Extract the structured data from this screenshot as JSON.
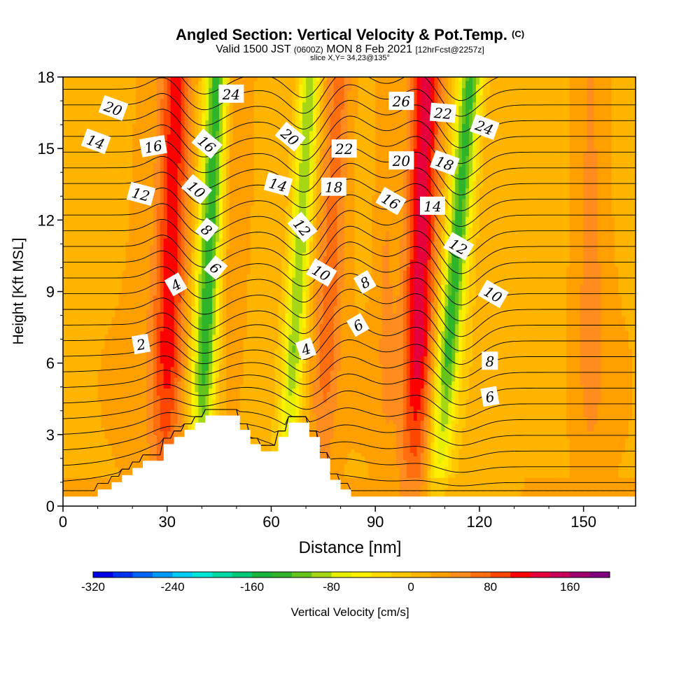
{
  "title": {
    "main": "Angled Section: Vertical Velocity & Pot.Temp.",
    "copyright": "(C)",
    "valid_prefix": "Valid 1500 JST",
    "utc": "(0600Z)",
    "date": "MON 8 Feb 2021",
    "forecast": "[12hrFcst@2257z]",
    "slice": "slice X,Y= 34,23@135°"
  },
  "colors": {
    "palette": [
      "#0000e6",
      "#0033f0",
      "#0066f5",
      "#0099f5",
      "#00ccf5",
      "#00e6d6",
      "#00d9a3",
      "#00c878",
      "#19b43c",
      "#2fb42a",
      "#66c319",
      "#a6d614",
      "#e6f000",
      "#fff000",
      "#ffdc00",
      "#ffc800",
      "#ffb400",
      "#ffa000",
      "#ff8c1e",
      "#ff6e0f",
      "#ff4600",
      "#ff0000",
      "#e6003c",
      "#c8005a",
      "#a0006e",
      "#800080",
      "#6e0096"
    ]
  },
  "chart_data": {
    "type": "heatmap",
    "xlabel": "Distance [nm]",
    "ylabel": "Height [Kft MSL]",
    "xlim": [
      0,
      165
    ],
    "ylim": [
      0,
      18
    ],
    "xticks": [
      0,
      30,
      60,
      90,
      120,
      150
    ],
    "yticks": [
      0,
      3,
      6,
      9,
      12,
      15,
      18
    ],
    "colorbar": {
      "label": "Vertical Velocity [cm/s]",
      "min": -320,
      "max": 200,
      "step": 20,
      "ticks": [
        -320,
        -240,
        -160,
        -80,
        0,
        80,
        160
      ]
    },
    "vertical_velocity_bands": [
      {
        "x": 31,
        "tilt": 0.2,
        "amp": 100,
        "width": 4.5,
        "label": "updraft"
      },
      {
        "x": 42,
        "tilt": 0.3,
        "amp": -150,
        "width": 3.5,
        "label": "downdraft"
      },
      {
        "x": 49,
        "tilt": 0.1,
        "amp": 30,
        "width": 5,
        "label": "updraft"
      },
      {
        "x": 68,
        "tilt": 0.4,
        "amp": -110,
        "width": 3,
        "label": "downdraft"
      },
      {
        "x": 77,
        "tilt": 0.3,
        "amp": 55,
        "width": 4,
        "label": "updraft"
      },
      {
        "x": 103,
        "tilt": 0.2,
        "amp": 120,
        "width": 4.5,
        "label": "updraft"
      },
      {
        "x": 113,
        "tilt": 0.55,
        "amp": -140,
        "width": 3.5,
        "label": "downdraft"
      },
      {
        "x": 93,
        "tilt": 0,
        "amp": 25,
        "width": 3,
        "label": "updraft"
      },
      {
        "x": 22,
        "tilt": 0.1,
        "amp": 10,
        "width": 4,
        "label": "updraft"
      },
      {
        "x": 152,
        "tilt": 0,
        "amp": 30,
        "width": 5,
        "label": "updraft"
      }
    ],
    "contour_labels": [
      {
        "text": "20",
        "x": 14.5,
        "y": 16.7,
        "angle": 20
      },
      {
        "text": "14",
        "x": 9.5,
        "y": 15.3,
        "angle": 20
      },
      {
        "text": "16",
        "x": 26,
        "y": 15.1,
        "angle": -10
      },
      {
        "text": "12",
        "x": 22.5,
        "y": 13.1,
        "angle": 15
      },
      {
        "text": "24",
        "x": 48.5,
        "y": 17.3,
        "angle": 0
      },
      {
        "text": "16",
        "x": 41.5,
        "y": 15.2,
        "angle": 40
      },
      {
        "text": "10",
        "x": 38.5,
        "y": 13.3,
        "angle": 40
      },
      {
        "text": "8",
        "x": 41.5,
        "y": 11.6,
        "angle": 40
      },
      {
        "text": "6",
        "x": 44,
        "y": 10.0,
        "angle": 40
      },
      {
        "text": "4",
        "x": 32.5,
        "y": 9.3,
        "angle": -30
      },
      {
        "text": "2",
        "x": 22.5,
        "y": 6.8,
        "angle": -10
      },
      {
        "text": "20",
        "x": 65.5,
        "y": 15.5,
        "angle": 40
      },
      {
        "text": "14",
        "x": 62,
        "y": 13.5,
        "angle": 15
      },
      {
        "text": "12",
        "x": 69,
        "y": 11.7,
        "angle": 50
      },
      {
        "text": "10",
        "x": 74.5,
        "y": 9.8,
        "angle": 30
      },
      {
        "text": "4",
        "x": 70,
        "y": 6.6,
        "angle": -20
      },
      {
        "text": "22",
        "x": 81,
        "y": 15.0,
        "angle": 0
      },
      {
        "text": "18",
        "x": 78,
        "y": 13.4,
        "angle": 0
      },
      {
        "text": "8",
        "x": 87,
        "y": 9.4,
        "angle": -30
      },
      {
        "text": "6",
        "x": 85,
        "y": 7.6,
        "angle": -30
      },
      {
        "text": "26",
        "x": 97.5,
        "y": 17.0,
        "angle": 0
      },
      {
        "text": "22",
        "x": 109.5,
        "y": 16.5,
        "angle": 5
      },
      {
        "text": "20",
        "x": 97.5,
        "y": 14.5,
        "angle": 0
      },
      {
        "text": "18",
        "x": 110,
        "y": 14.4,
        "angle": 20
      },
      {
        "text": "16",
        "x": 94.5,
        "y": 12.8,
        "angle": 30
      },
      {
        "text": "14",
        "x": 106.5,
        "y": 12.6,
        "angle": 0
      },
      {
        "text": "24",
        "x": 121.5,
        "y": 15.9,
        "angle": 20
      },
      {
        "text": "12",
        "x": 114,
        "y": 10.9,
        "angle": 30
      },
      {
        "text": "10",
        "x": 124,
        "y": 8.9,
        "angle": 30
      },
      {
        "text": "8",
        "x": 123,
        "y": 6.1,
        "angle": 0
      },
      {
        "text": "6",
        "x": 123,
        "y": 4.6,
        "angle": -10
      }
    ],
    "terrain": [
      [
        0,
        0.4
      ],
      [
        10,
        0.4
      ],
      [
        10,
        0.7
      ],
      [
        14,
        0.7
      ],
      [
        14,
        1.0
      ],
      [
        17,
        1.0
      ],
      [
        17,
        1.3
      ],
      [
        20,
        1.3
      ],
      [
        20,
        1.6
      ],
      [
        23,
        1.6
      ],
      [
        23,
        1.9
      ],
      [
        29,
        1.9
      ],
      [
        29,
        2.6
      ],
      [
        32,
        2.6
      ],
      [
        32,
        2.9
      ],
      [
        35,
        2.9
      ],
      [
        35,
        3.2
      ],
      [
        38,
        3.2
      ],
      [
        38,
        3.5
      ],
      [
        41,
        3.5
      ],
      [
        41,
        3.8
      ],
      [
        51,
        3.8
      ],
      [
        51,
        3.2
      ],
      [
        54,
        3.2
      ],
      [
        54,
        2.6
      ],
      [
        57,
        2.6
      ],
      [
        57,
        2.3
      ],
      [
        62,
        2.3
      ],
      [
        62,
        2.9
      ],
      [
        65,
        2.9
      ],
      [
        65,
        3.5
      ],
      [
        71,
        3.5
      ],
      [
        71,
        2.9
      ],
      [
        74,
        2.9
      ],
      [
        74,
        2.0
      ],
      [
        77,
        2.0
      ],
      [
        77,
        1.1
      ],
      [
        80,
        1.1
      ],
      [
        80,
        0.7
      ],
      [
        83,
        0.7
      ],
      [
        83,
        0.4
      ],
      [
        165,
        0.4
      ]
    ]
  }
}
